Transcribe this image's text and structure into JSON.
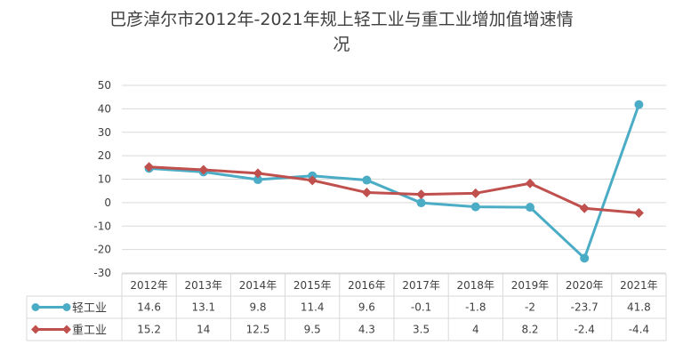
{
  "chart_data": {
    "type": "line",
    "title_lines": [
      "巴彦淖尔市2012年-2021年规上轻工业与重工业增加值增速情",
      "况"
    ],
    "categories": [
      "2012年",
      "2013年",
      "2014年",
      "2015年",
      "2016年",
      "2017年",
      "2018年",
      "2019年",
      "2020年",
      "2021年"
    ],
    "yticks": [
      "50",
      "40",
      "30",
      "20",
      "10",
      "0",
      "-10",
      "-20",
      "-30"
    ],
    "ylim": [
      -30,
      50
    ],
    "grid": true,
    "legend": "data-table-left",
    "series": [
      {
        "name": "轻工业",
        "color": "#4bacc6",
        "marker": "circle",
        "values": [
          14.6,
          13.1,
          9.8,
          11.4,
          9.6,
          -0.1,
          -1.8,
          -2,
          -23.7,
          41.8
        ],
        "labels": [
          "14.6",
          "13.1",
          "9.8",
          "11.4",
          "9.6",
          "-0.1",
          "-1.8",
          "-2",
          "-23.7",
          "41.8"
        ]
      },
      {
        "name": "重工业",
        "color": "#c0504d",
        "marker": "diamond",
        "values": [
          15.2,
          14,
          12.5,
          9.5,
          4.3,
          3.5,
          4,
          8.2,
          -2.4,
          -4.4
        ],
        "labels": [
          "15.2",
          "14",
          "12.5",
          "9.5",
          "4.3",
          "3.5",
          "4",
          "8.2",
          "-2.4",
          "-4.4"
        ]
      }
    ]
  }
}
